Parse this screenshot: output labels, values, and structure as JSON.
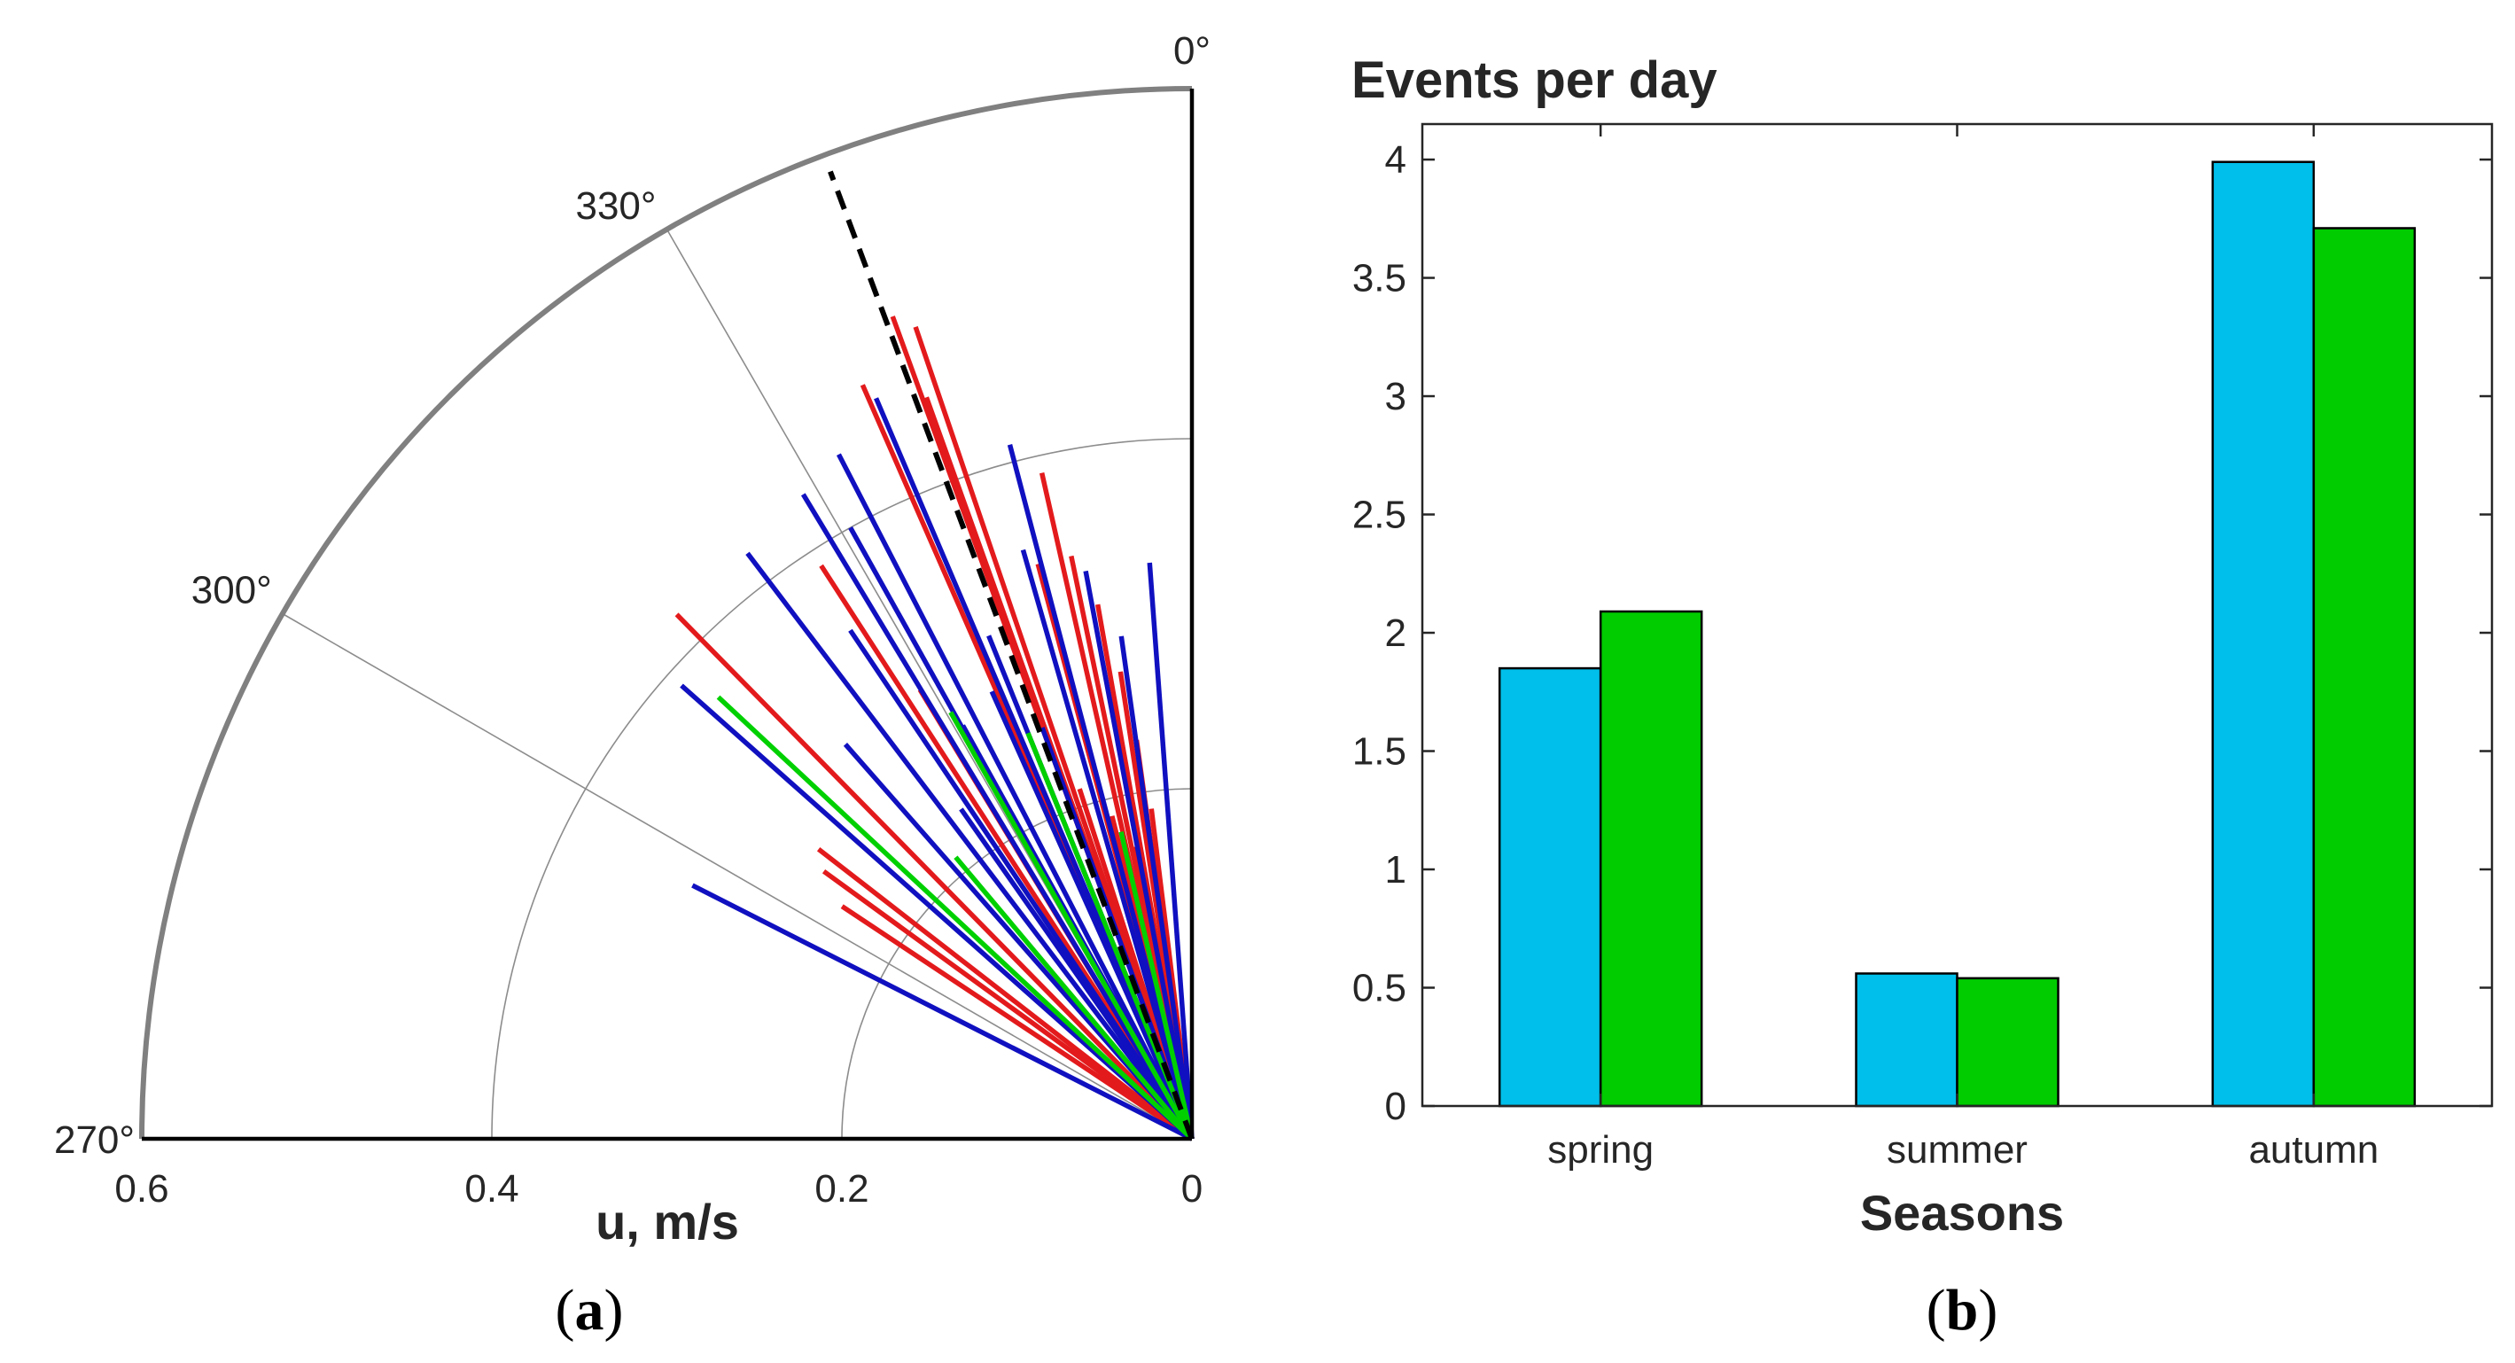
{
  "chart_data": [
    {
      "type": "polar-lines",
      "panel_label": "a",
      "xlabel": "u, m/s",
      "radial_ticks": [
        0.6,
        0.4,
        0.2,
        0
      ],
      "radial_tick_labels": [
        "0.6",
        "0.4",
        "0.2",
        "0"
      ],
      "rmax": 0.6,
      "angle_ticks": [
        270,
        300,
        330,
        0
      ],
      "angle_tick_labels": [
        "270°",
        "300°",
        "330°",
        "0°"
      ],
      "colors": {
        "a": "#e31a1c",
        "b": "#1010c0",
        "c": "#00d000",
        "mean": "#000000",
        "grid": "#8c8c8c",
        "frame": "#000000"
      },
      "mean_direction": {
        "angle": 339.5,
        "r": 0.59
      },
      "series": [
        {
          "name": "red",
          "color_key": "a",
          "lines": [
            {
              "angle": 340.0,
              "r": 0.5
            },
            {
              "angle": 340.3,
              "r": 0.45
            },
            {
              "angle": 341.2,
              "r": 0.49
            },
            {
              "angle": 347.3,
              "r": 0.39
            },
            {
              "angle": 336.4,
              "r": 0.47
            },
            {
              "angle": 345.0,
              "r": 0.34
            },
            {
              "angle": 348.3,
              "r": 0.34
            },
            {
              "angle": 327.1,
              "r": 0.39
            },
            {
              "angle": 315.5,
              "r": 0.42
            },
            {
              "angle": 328.8,
              "r": 0.3
            },
            {
              "angle": 307.8,
              "r": 0.27
            },
            {
              "angle": 306.0,
              "r": 0.26
            },
            {
              "angle": 303.6,
              "r": 0.24
            },
            {
              "angle": 350.0,
              "r": 0.31
            },
            {
              "angle": 351.3,
              "r": 0.27
            },
            {
              "angle": 352.1,
              "r": 0.23
            },
            {
              "angle": 342.2,
              "r": 0.21
            },
            {
              "angle": 346.1,
              "r": 0.19
            },
            {
              "angle": 348.8,
              "r": 0.17
            },
            {
              "angle": 353.0,
              "r": 0.19
            },
            {
              "angle": 336.7,
              "r": 0.25
            }
          ]
        },
        {
          "name": "blue",
          "color_key": "b",
          "lines": [
            {
              "angle": 328.9,
              "r": 0.43
            },
            {
              "angle": 332.7,
              "r": 0.44
            },
            {
              "angle": 336.9,
              "r": 0.46
            },
            {
              "angle": 322.8,
              "r": 0.42
            },
            {
              "angle": 330.8,
              "r": 0.4
            },
            {
              "angle": 311.6,
              "r": 0.39
            },
            {
              "angle": 296.9,
              "r": 0.32
            },
            {
              "angle": 345.3,
              "r": 0.41
            },
            {
              "angle": 344.0,
              "r": 0.35
            },
            {
              "angle": 355.8,
              "r": 0.33
            },
            {
              "angle": 349.4,
              "r": 0.33
            },
            {
              "angle": 326.1,
              "r": 0.35
            },
            {
              "angle": 318.7,
              "r": 0.3
            },
            {
              "angle": 335.9,
              "r": 0.28
            },
            {
              "angle": 331.0,
              "r": 0.27
            },
            {
              "angle": 340.0,
              "r": 0.25
            },
            {
              "angle": 325.0,
              "r": 0.23
            },
            {
              "angle": 352.0,
              "r": 0.29
            },
            {
              "angle": 338.0,
              "r": 0.31
            }
          ]
        },
        {
          "name": "green",
          "color_key": "c",
          "lines": [
            {
              "angle": 313.0,
              "r": 0.37
            },
            {
              "angle": 330.5,
              "r": 0.28
            },
            {
              "angle": 338.0,
              "r": 0.25
            },
            {
              "angle": 320.0,
              "r": 0.21
            },
            {
              "angle": 347.0,
              "r": 0.18
            }
          ]
        }
      ]
    },
    {
      "type": "bar",
      "panel_label": "b",
      "title": "Events per day",
      "xlabel": "Seasons",
      "ylabel": "",
      "categories": [
        "spring",
        "summer",
        "autumn"
      ],
      "series": [
        {
          "name": "cyan",
          "color": "#00bfea",
          "values": [
            1.85,
            0.56,
            3.99
          ]
        },
        {
          "name": "green",
          "color": "#00cc00",
          "values": [
            2.09,
            0.54,
            3.71
          ]
        }
      ],
      "ylim": [
        0,
        4.15
      ],
      "yticks": [
        0,
        0.5,
        1,
        1.5,
        2,
        2.5,
        3,
        3.5,
        4
      ],
      "ytick_labels": [
        "0",
        "0.5",
        "1",
        "1.5",
        "2",
        "2.5",
        "3",
        "3.5",
        "4"
      ]
    }
  ],
  "captions": {
    "open": "(",
    "a": "a",
    "b": "b",
    "close": ")"
  }
}
